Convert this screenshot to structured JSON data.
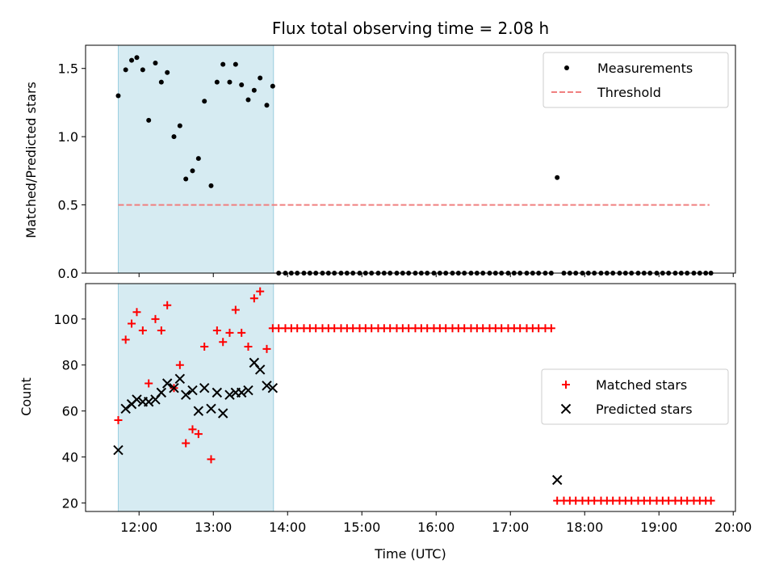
{
  "chart_data": [
    {
      "type": "scatter",
      "title": "Flux total observing time = 2.08 h",
      "ylabel": "Matched/Predicted stars",
      "xlabel": "",
      "x_unit": "hours (UTC)",
      "xlim": [
        11.28,
        20.03
      ],
      "ylim": [
        0,
        1.67
      ],
      "yticks": [
        {
          "v": 0,
          "label": "0.0"
        },
        {
          "v": 0.5,
          "label": "0.5"
        },
        {
          "v": 1.0,
          "label": "1.0"
        },
        {
          "v": 1.5,
          "label": "1.5"
        }
      ],
      "grid": false,
      "legend_position": "top-right",
      "shaded_region": {
        "x0": 11.72,
        "x1": 13.81,
        "color": "#add8e6"
      },
      "series": [
        {
          "name": "Measurements",
          "marker": "dot",
          "color": "#000000",
          "points": [
            [
              11.72,
              1.3
            ],
            [
              11.82,
              1.49
            ],
            [
              11.9,
              1.56
            ],
            [
              11.97,
              1.58
            ],
            [
              12.05,
              1.49
            ],
            [
              12.13,
              1.12
            ],
            [
              12.22,
              1.54
            ],
            [
              12.3,
              1.4
            ],
            [
              12.38,
              1.47
            ],
            [
              12.47,
              1.0
            ],
            [
              12.55,
              1.08
            ],
            [
              12.63,
              0.69
            ],
            [
              12.72,
              0.75
            ],
            [
              12.8,
              0.84
            ],
            [
              12.88,
              1.26
            ],
            [
              12.97,
              0.64
            ],
            [
              13.05,
              1.4
            ],
            [
              13.13,
              1.53
            ],
            [
              13.22,
              1.4
            ],
            [
              13.3,
              1.53
            ],
            [
              13.38,
              1.38
            ],
            [
              13.47,
              1.27
            ],
            [
              13.55,
              1.34
            ],
            [
              13.63,
              1.43
            ],
            [
              13.72,
              1.23
            ],
            [
              13.8,
              1.37
            ],
            [
              13.88,
              0
            ],
            [
              13.97,
              0
            ],
            [
              14.05,
              0
            ],
            [
              14.13,
              0
            ],
            [
              14.22,
              0
            ],
            [
              14.3,
              0
            ],
            [
              14.38,
              0
            ],
            [
              14.47,
              0
            ],
            [
              14.55,
              0
            ],
            [
              14.63,
              0
            ],
            [
              14.72,
              0
            ],
            [
              14.8,
              0
            ],
            [
              14.88,
              0
            ],
            [
              14.97,
              0
            ],
            [
              15.05,
              0
            ],
            [
              15.13,
              0
            ],
            [
              15.22,
              0
            ],
            [
              15.3,
              0
            ],
            [
              15.38,
              0
            ],
            [
              15.47,
              0
            ],
            [
              15.55,
              0
            ],
            [
              15.63,
              0
            ],
            [
              15.72,
              0
            ],
            [
              15.8,
              0
            ],
            [
              15.88,
              0
            ],
            [
              15.97,
              0
            ],
            [
              16.05,
              0
            ],
            [
              16.13,
              0
            ],
            [
              16.22,
              0
            ],
            [
              16.3,
              0
            ],
            [
              16.38,
              0
            ],
            [
              16.47,
              0
            ],
            [
              16.55,
              0
            ],
            [
              16.63,
              0
            ],
            [
              16.72,
              0
            ],
            [
              16.8,
              0
            ],
            [
              16.88,
              0
            ],
            [
              16.97,
              0
            ],
            [
              17.05,
              0
            ],
            [
              17.13,
              0
            ],
            [
              17.22,
              0
            ],
            [
              17.3,
              0
            ],
            [
              17.38,
              0
            ],
            [
              17.47,
              0
            ],
            [
              17.55,
              0
            ],
            [
              17.63,
              0.7
            ],
            [
              17.72,
              0
            ],
            [
              17.8,
              0
            ],
            [
              17.88,
              0
            ],
            [
              17.97,
              0
            ],
            [
              18.05,
              0
            ],
            [
              18.13,
              0
            ],
            [
              18.22,
              0
            ],
            [
              18.3,
              0
            ],
            [
              18.38,
              0
            ],
            [
              18.47,
              0
            ],
            [
              18.55,
              0
            ],
            [
              18.63,
              0
            ],
            [
              18.72,
              0
            ],
            [
              18.8,
              0
            ],
            [
              18.88,
              0
            ],
            [
              18.97,
              0
            ],
            [
              19.05,
              0
            ],
            [
              19.13,
              0
            ],
            [
              19.22,
              0
            ],
            [
              19.3,
              0
            ],
            [
              19.38,
              0
            ],
            [
              19.47,
              0
            ],
            [
              19.55,
              0
            ],
            [
              19.63,
              0
            ],
            [
              19.7,
              0
            ]
          ]
        },
        {
          "name": "Threshold",
          "marker": "dashed-line",
          "color": "#f08080",
          "points": [
            [
              11.72,
              0.5
            ],
            [
              19.68,
              0.5
            ]
          ]
        }
      ]
    },
    {
      "type": "scatter",
      "title": "",
      "ylabel": "Count",
      "xlabel": "Time (UTC)",
      "x_unit": "hours (UTC)",
      "xlim": [
        11.28,
        20.03
      ],
      "ylim": [
        16.3,
        115.4
      ],
      "xticks": [
        {
          "v": 12,
          "label": "12:00"
        },
        {
          "v": 13,
          "label": "13:00"
        },
        {
          "v": 14,
          "label": "14:00"
        },
        {
          "v": 15,
          "label": "15:00"
        },
        {
          "v": 16,
          "label": "16:00"
        },
        {
          "v": 17,
          "label": "17:00"
        },
        {
          "v": 18,
          "label": "18:00"
        },
        {
          "v": 19,
          "label": "19:00"
        },
        {
          "v": 20,
          "label": "20:00"
        }
      ],
      "yticks": [
        {
          "v": 20,
          "label": "20"
        },
        {
          "v": 40,
          "label": "40"
        },
        {
          "v": 60,
          "label": "60"
        },
        {
          "v": 80,
          "label": "80"
        },
        {
          "v": 100,
          "label": "100"
        }
      ],
      "grid": false,
      "legend_position": "center-right",
      "shaded_region": {
        "x0": 11.72,
        "x1": 13.81,
        "color": "#add8e6"
      },
      "series": [
        {
          "name": "Matched stars",
          "marker": "plus",
          "color": "#ff0000",
          "points": [
            [
              11.72,
              56
            ],
            [
              11.82,
              91
            ],
            [
              11.9,
              98
            ],
            [
              11.97,
              103
            ],
            [
              12.05,
              95
            ],
            [
              12.13,
              72
            ],
            [
              12.22,
              100
            ],
            [
              12.3,
              95
            ],
            [
              12.38,
              106
            ],
            [
              12.47,
              70
            ],
            [
              12.55,
              80
            ],
            [
              12.63,
              46
            ],
            [
              12.72,
              52
            ],
            [
              12.8,
              50
            ],
            [
              12.88,
              88
            ],
            [
              12.97,
              39
            ],
            [
              13.05,
              95
            ],
            [
              13.13,
              90
            ],
            [
              13.22,
              94
            ],
            [
              13.3,
              104
            ],
            [
              13.38,
              94
            ],
            [
              13.47,
              88
            ],
            [
              13.55,
              109
            ],
            [
              13.63,
              112
            ],
            [
              13.72,
              87
            ],
            [
              13.8,
              96
            ],
            [
              13.88,
              96
            ],
            [
              13.97,
              96
            ],
            [
              14.05,
              96
            ],
            [
              14.13,
              96
            ],
            [
              14.22,
              96
            ],
            [
              14.3,
              96
            ],
            [
              14.38,
              96
            ],
            [
              14.47,
              96
            ],
            [
              14.55,
              96
            ],
            [
              14.63,
              96
            ],
            [
              14.72,
              96
            ],
            [
              14.8,
              96
            ],
            [
              14.88,
              96
            ],
            [
              14.97,
              96
            ],
            [
              15.05,
              96
            ],
            [
              15.13,
              96
            ],
            [
              15.22,
              96
            ],
            [
              15.3,
              96
            ],
            [
              15.38,
              96
            ],
            [
              15.47,
              96
            ],
            [
              15.55,
              96
            ],
            [
              15.63,
              96
            ],
            [
              15.72,
              96
            ],
            [
              15.8,
              96
            ],
            [
              15.88,
              96
            ],
            [
              15.97,
              96
            ],
            [
              16.05,
              96
            ],
            [
              16.13,
              96
            ],
            [
              16.22,
              96
            ],
            [
              16.3,
              96
            ],
            [
              16.38,
              96
            ],
            [
              16.47,
              96
            ],
            [
              16.55,
              96
            ],
            [
              16.63,
              96
            ],
            [
              16.72,
              96
            ],
            [
              16.8,
              96
            ],
            [
              16.88,
              96
            ],
            [
              16.97,
              96
            ],
            [
              17.05,
              96
            ],
            [
              17.13,
              96
            ],
            [
              17.22,
              96
            ],
            [
              17.3,
              96
            ],
            [
              17.38,
              96
            ],
            [
              17.47,
              96
            ],
            [
              17.55,
              96
            ],
            [
              17.63,
              21
            ],
            [
              17.72,
              21
            ],
            [
              17.8,
              21
            ],
            [
              17.88,
              21
            ],
            [
              17.97,
              21
            ],
            [
              18.05,
              21
            ],
            [
              18.13,
              21
            ],
            [
              18.22,
              21
            ],
            [
              18.3,
              21
            ],
            [
              18.38,
              21
            ],
            [
              18.47,
              21
            ],
            [
              18.55,
              21
            ],
            [
              18.63,
              21
            ],
            [
              18.72,
              21
            ],
            [
              18.8,
              21
            ],
            [
              18.88,
              21
            ],
            [
              18.97,
              21
            ],
            [
              19.05,
              21
            ],
            [
              19.13,
              21
            ],
            [
              19.22,
              21
            ],
            [
              19.3,
              21
            ],
            [
              19.38,
              21
            ],
            [
              19.47,
              21
            ],
            [
              19.55,
              21
            ],
            [
              19.63,
              21
            ],
            [
              19.7,
              21
            ]
          ]
        },
        {
          "name": "Predicted stars",
          "marker": "x",
          "color": "#000000",
          "points": [
            [
              11.72,
              43
            ],
            [
              11.82,
              61
            ],
            [
              11.9,
              63
            ],
            [
              11.97,
              65
            ],
            [
              12.05,
              64
            ],
            [
              12.13,
              64
            ],
            [
              12.22,
              65
            ],
            [
              12.3,
              68
            ],
            [
              12.38,
              72
            ],
            [
              12.47,
              70
            ],
            [
              12.55,
              74
            ],
            [
              12.63,
              67
            ],
            [
              12.72,
              69
            ],
            [
              12.8,
              60
            ],
            [
              12.88,
              70
            ],
            [
              12.97,
              61
            ],
            [
              13.05,
              68
            ],
            [
              13.13,
              59
            ],
            [
              13.22,
              67
            ],
            [
              13.3,
              68
            ],
            [
              13.38,
              68
            ],
            [
              13.47,
              69
            ],
            [
              13.55,
              81
            ],
            [
              13.63,
              78
            ],
            [
              13.72,
              71
            ],
            [
              13.8,
              70
            ],
            [
              17.63,
              30
            ]
          ]
        }
      ]
    }
  ]
}
